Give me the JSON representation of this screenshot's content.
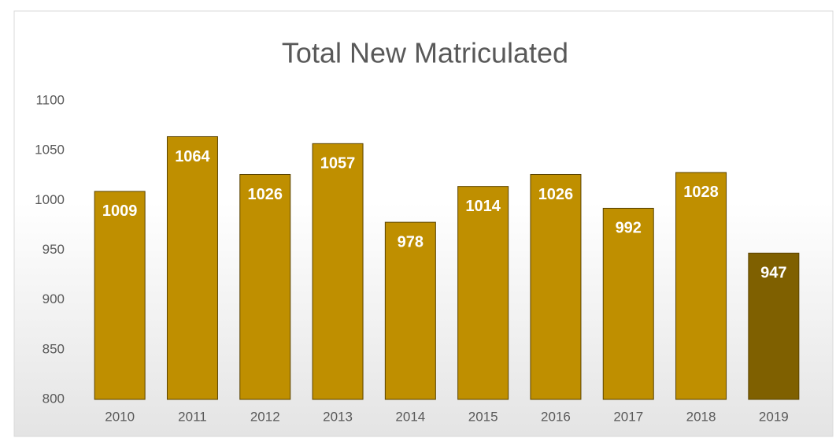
{
  "chart_data": {
    "type": "bar",
    "title": "Total New Matriculated",
    "categories": [
      "2010",
      "2011",
      "2012",
      "2013",
      "2014",
      "2015",
      "2016",
      "2017",
      "2018",
      "2019"
    ],
    "values": [
      1009,
      1064,
      1026,
      1057,
      978,
      1014,
      1026,
      992,
      1028,
      947
    ],
    "colors": [
      "#bf8f00",
      "#bf8f00",
      "#bf8f00",
      "#bf8f00",
      "#bf8f00",
      "#bf8f00",
      "#bf8f00",
      "#bf8f00",
      "#bf8f00",
      "#7f6000"
    ],
    "ylim": [
      800,
      1100
    ],
    "yticks": [
      800,
      850,
      900,
      950,
      1000,
      1050,
      1100
    ],
    "grid": false
  }
}
